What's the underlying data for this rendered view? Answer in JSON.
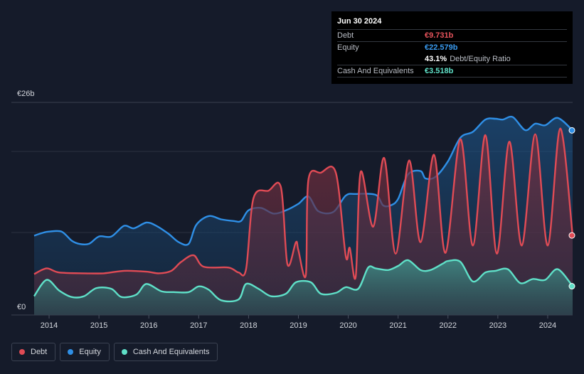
{
  "chart_data": {
    "type": "area",
    "currency": "€",
    "ylabel_top": "€26b",
    "ylabel_bottom": "€0",
    "ylim": [
      0,
      26
    ],
    "xlim": [
      2013.7,
      2024.5
    ],
    "x_ticks": [
      "2014",
      "2015",
      "2016",
      "2017",
      "2018",
      "2019",
      "2020",
      "2021",
      "2022",
      "2023",
      "2024"
    ],
    "series": [
      {
        "name": "Equity",
        "color": "#2f8fe6",
        "points": [
          [
            2013.7,
            9.7
          ],
          [
            2013.9,
            10.1
          ],
          [
            2014.0,
            10.2
          ],
          [
            2014.25,
            10.2
          ],
          [
            2014.45,
            9.1
          ],
          [
            2014.6,
            8.7
          ],
          [
            2014.8,
            8.7
          ],
          [
            2015.0,
            9.6
          ],
          [
            2015.25,
            9.6
          ],
          [
            2015.5,
            10.9
          ],
          [
            2015.7,
            10.6
          ],
          [
            2015.95,
            11.3
          ],
          [
            2016.15,
            10.9
          ],
          [
            2016.4,
            9.9
          ],
          [
            2016.6,
            8.9
          ],
          [
            2016.8,
            8.7
          ],
          [
            2016.95,
            11.0
          ],
          [
            2017.2,
            12.1
          ],
          [
            2017.45,
            11.7
          ],
          [
            2017.7,
            11.5
          ],
          [
            2017.85,
            11.5
          ],
          [
            2018.0,
            12.8
          ],
          [
            2018.25,
            13.1
          ],
          [
            2018.5,
            12.4
          ],
          [
            2018.75,
            12.8
          ],
          [
            2019.0,
            13.6
          ],
          [
            2019.2,
            14.5
          ],
          [
            2019.4,
            12.7
          ],
          [
            2019.7,
            12.6
          ],
          [
            2019.95,
            14.6
          ],
          [
            2020.15,
            14.8
          ],
          [
            2020.55,
            14.7
          ],
          [
            2020.7,
            13.4
          ],
          [
            2020.85,
            13.4
          ],
          [
            2021.0,
            14.2
          ],
          [
            2021.2,
            17.2
          ],
          [
            2021.45,
            17.6
          ],
          [
            2021.55,
            16.7
          ],
          [
            2021.75,
            16.9
          ],
          [
            2022.0,
            18.8
          ],
          [
            2022.25,
            21.7
          ],
          [
            2022.5,
            22.4
          ],
          [
            2022.75,
            23.9
          ],
          [
            2022.95,
            24.0
          ],
          [
            2023.1,
            23.9
          ],
          [
            2023.3,
            24.2
          ],
          [
            2023.55,
            22.6
          ],
          [
            2023.75,
            23.4
          ],
          [
            2023.95,
            23.2
          ],
          [
            2024.2,
            24.1
          ],
          [
            2024.5,
            22.579
          ]
        ]
      },
      {
        "name": "Debt",
        "color": "#e04b55",
        "points": [
          [
            2013.7,
            5.0
          ],
          [
            2013.95,
            5.7
          ],
          [
            2014.2,
            5.2
          ],
          [
            2014.7,
            5.1
          ],
          [
            2015.1,
            5.1
          ],
          [
            2015.5,
            5.4
          ],
          [
            2015.95,
            5.3
          ],
          [
            2016.2,
            5.1
          ],
          [
            2016.45,
            5.4
          ],
          [
            2016.65,
            6.5
          ],
          [
            2016.9,
            7.3
          ],
          [
            2017.1,
            5.9
          ],
          [
            2017.6,
            5.8
          ],
          [
            2017.8,
            5.2
          ],
          [
            2017.95,
            5.6
          ],
          [
            2018.1,
            14.3
          ],
          [
            2018.4,
            15.2
          ],
          [
            2018.65,
            15.6
          ],
          [
            2018.78,
            6.2
          ],
          [
            2018.95,
            8.9
          ],
          [
            2019.0,
            7.9
          ],
          [
            2019.15,
            4.9
          ],
          [
            2019.2,
            16.5
          ],
          [
            2019.45,
            17.4
          ],
          [
            2019.75,
            17.4
          ],
          [
            2019.95,
            7.2
          ],
          [
            2020.03,
            8.2
          ],
          [
            2020.15,
            4.7
          ],
          [
            2020.25,
            17.5
          ],
          [
            2020.5,
            10.8
          ],
          [
            2020.72,
            19.2
          ],
          [
            2020.95,
            7.5
          ],
          [
            2021.22,
            18.9
          ],
          [
            2021.45,
            8.9
          ],
          [
            2021.72,
            19.6
          ],
          [
            2021.95,
            7.6
          ],
          [
            2022.25,
            21.5
          ],
          [
            2022.5,
            8.5
          ],
          [
            2022.75,
            22.0
          ],
          [
            2022.98,
            7.5
          ],
          [
            2023.23,
            21.2
          ],
          [
            2023.48,
            8.5
          ],
          [
            2023.75,
            22.1
          ],
          [
            2024.0,
            8.5
          ],
          [
            2024.25,
            22.8
          ],
          [
            2024.5,
            9.731
          ]
        ]
      },
      {
        "name": "Cash And Equivalents",
        "color": "#5fe0c8",
        "points": [
          [
            2013.7,
            2.3
          ],
          [
            2013.95,
            4.3
          ],
          [
            2014.2,
            3.0
          ],
          [
            2014.45,
            2.2
          ],
          [
            2014.7,
            2.3
          ],
          [
            2014.95,
            3.3
          ],
          [
            2015.25,
            3.2
          ],
          [
            2015.45,
            2.2
          ],
          [
            2015.75,
            2.5
          ],
          [
            2015.95,
            3.8
          ],
          [
            2016.25,
            2.9
          ],
          [
            2016.5,
            2.8
          ],
          [
            2016.8,
            2.8
          ],
          [
            2017.0,
            3.5
          ],
          [
            2017.2,
            3.1
          ],
          [
            2017.45,
            1.8
          ],
          [
            2017.8,
            1.9
          ],
          [
            2017.95,
            3.8
          ],
          [
            2018.2,
            3.2
          ],
          [
            2018.45,
            2.3
          ],
          [
            2018.75,
            2.6
          ],
          [
            2018.95,
            4.0
          ],
          [
            2019.25,
            4.0
          ],
          [
            2019.45,
            2.6
          ],
          [
            2019.75,
            2.7
          ],
          [
            2019.95,
            3.4
          ],
          [
            2020.2,
            3.2
          ],
          [
            2020.4,
            5.8
          ],
          [
            2020.55,
            5.7
          ],
          [
            2020.8,
            5.5
          ],
          [
            2021.0,
            6.0
          ],
          [
            2021.2,
            6.7
          ],
          [
            2021.45,
            5.5
          ],
          [
            2021.65,
            5.5
          ],
          [
            2021.9,
            6.3
          ],
          [
            2022.0,
            6.6
          ],
          [
            2022.25,
            6.5
          ],
          [
            2022.5,
            4.1
          ],
          [
            2022.75,
            5.2
          ],
          [
            2022.95,
            5.4
          ],
          [
            2023.2,
            5.6
          ],
          [
            2023.45,
            3.9
          ],
          [
            2023.7,
            4.4
          ],
          [
            2023.95,
            4.3
          ],
          [
            2024.2,
            5.6
          ],
          [
            2024.5,
            3.518
          ]
        ]
      }
    ]
  },
  "tooltip": {
    "date": "Jun 30 2024",
    "rows": [
      {
        "label": "Debt",
        "value": "€9.731b",
        "color": "#e8545c"
      },
      {
        "label": "Equity",
        "value": "€22.579b",
        "color": "#3a9bf0"
      },
      {
        "label": "",
        "value": "43.1%",
        "sub": "Debt/Equity Ratio",
        "color": "#ffffff"
      },
      {
        "label": "Cash And Equivalents",
        "value": "€3.518b",
        "color": "#5fe0c8"
      }
    ]
  },
  "legend": [
    {
      "label": "Debt",
      "color": "#e04b55"
    },
    {
      "label": "Equity",
      "color": "#2f8fe6"
    },
    {
      "label": "Cash And Equivalents",
      "color": "#5fe0c8"
    }
  ]
}
